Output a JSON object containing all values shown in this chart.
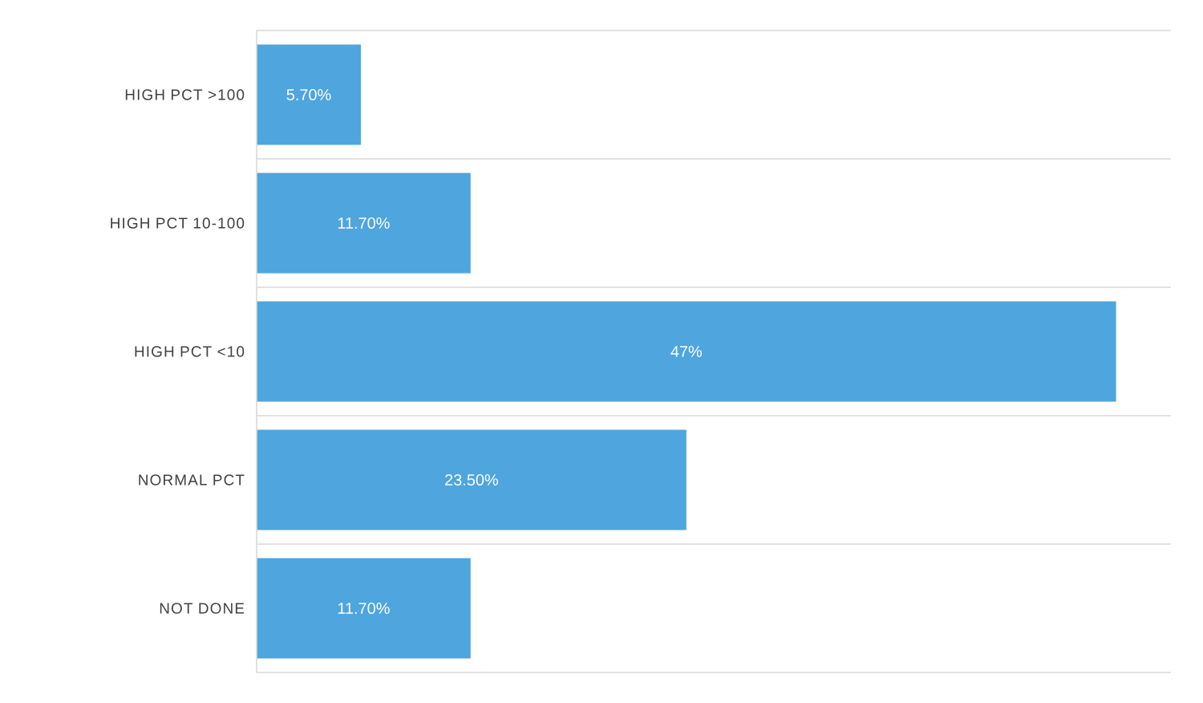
{
  "chart_data": {
    "type": "bar",
    "orientation": "horizontal",
    "categories": [
      "HIGH PCT >100",
      "HIGH PCT 10-100",
      "HIGH PCT <10",
      "NORMAL PCT",
      "NOT DONE"
    ],
    "values": [
      5.7,
      11.7,
      47,
      23.5,
      11.7
    ],
    "value_labels": [
      "5.70%",
      "11.70%",
      "47%",
      "23.50%",
      "11.70%"
    ],
    "color": "#4fa5dd",
    "xlim": [
      0,
      50
    ],
    "grid": "y"
  }
}
